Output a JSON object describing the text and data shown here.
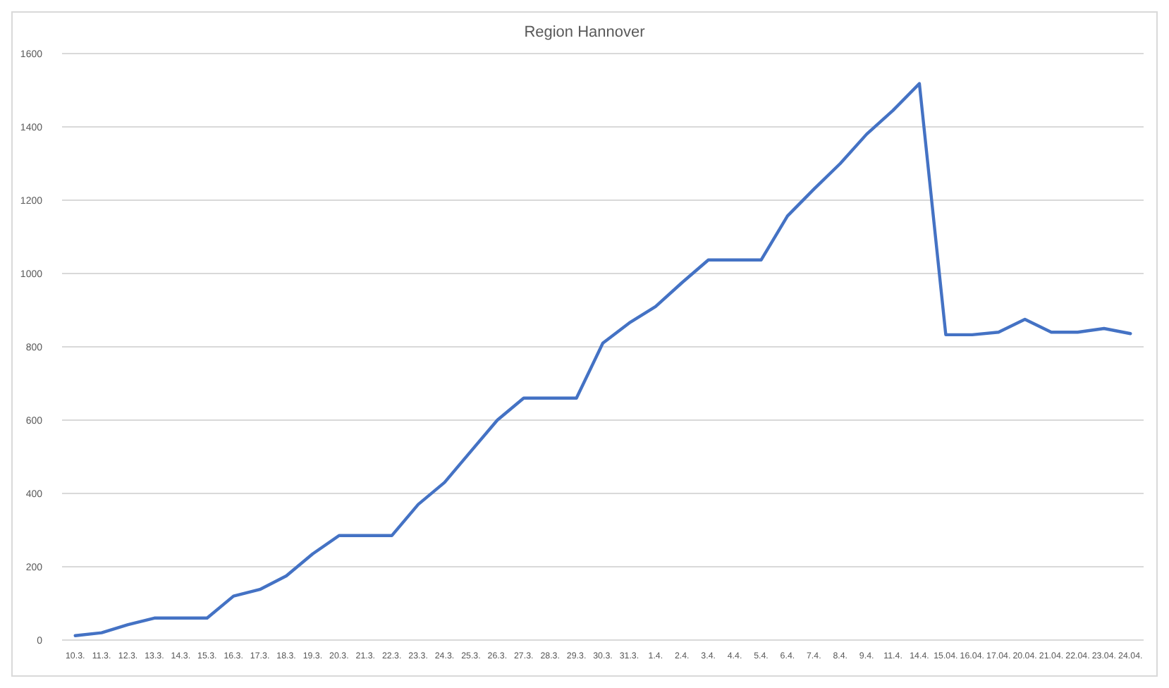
{
  "chart_data": {
    "type": "line",
    "title": "Region Hannover",
    "categories": [
      "10.3.",
      "11.3.",
      "12.3.",
      "13.3.",
      "14.3.",
      "15.3.",
      "16.3.",
      "17.3.",
      "18.3.",
      "19.3.",
      "20.3.",
      "21.3.",
      "22.3.",
      "23.3.",
      "24.3.",
      "25.3.",
      "26.3.",
      "27.3.",
      "28.3.",
      "29.3.",
      "30.3.",
      "31.3.",
      "1.4.",
      "2.4.",
      "3.4.",
      "4.4.",
      "5.4.",
      "6.4.",
      "7.4.",
      "8.4.",
      "9.4.",
      "11.4.",
      "14.4.",
      "15.04.",
      "16.04.",
      "17.04.",
      "20.04.",
      "21.04.",
      "22.04.",
      "23.04.",
      "24.04."
    ],
    "series": [
      {
        "color": "#4472c4",
        "values": [
          12,
          20,
          42,
          60,
          60,
          60,
          120,
          138,
          175,
          235,
          285,
          285,
          285,
          370,
          430,
          515,
          600,
          660,
          660,
          660,
          810,
          865,
          910,
          975,
          1037,
          1037,
          1037,
          1157,
          1230,
          1300,
          1380,
          1445,
          1518,
          833,
          833,
          840,
          875,
          840,
          840,
          850,
          836
        ]
      }
    ],
    "ylim": [
      0,
      1600
    ],
    "yticks": [
      0,
      200,
      400,
      600,
      800,
      1000,
      1200,
      1400,
      1600
    ],
    "grid": "y",
    "marker": "none",
    "line_style": "solid"
  }
}
